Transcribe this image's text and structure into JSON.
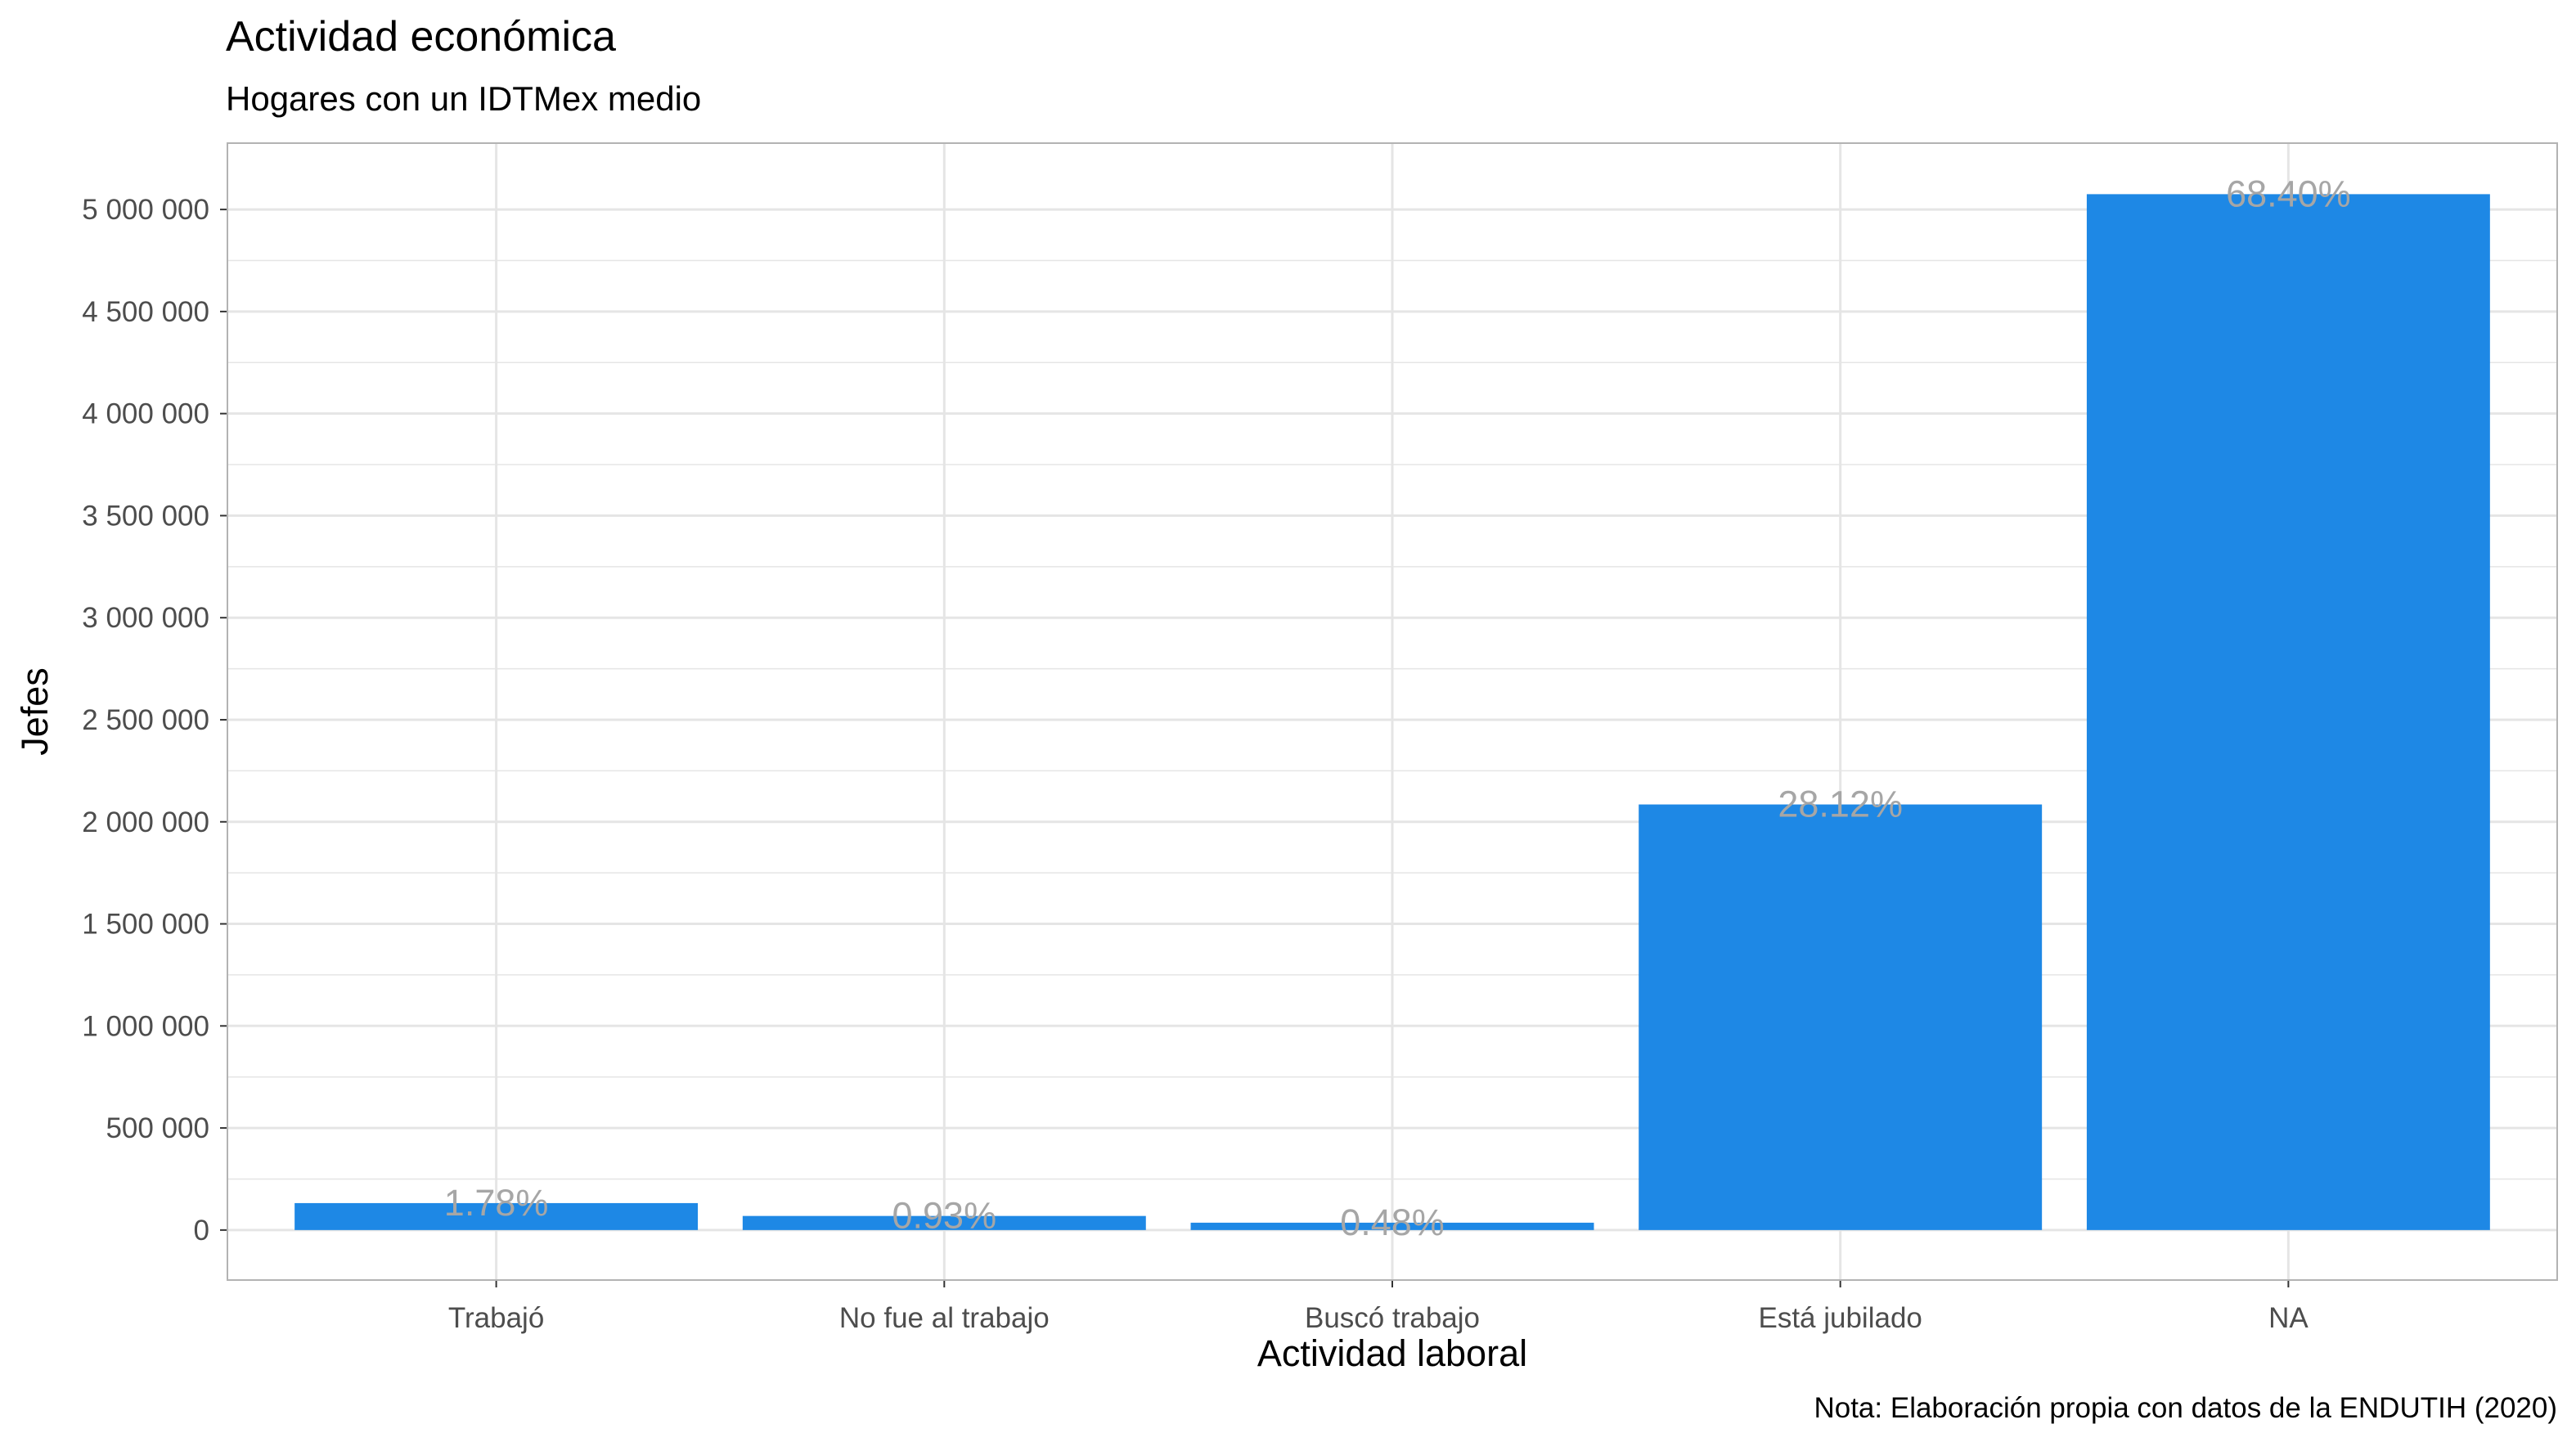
{
  "chart_data": {
    "type": "bar",
    "title": "Actividad económica",
    "subtitle": "Hogares con un IDTMex medio",
    "xlabel": "Actividad laboral",
    "ylabel": "Jefes",
    "caption": "Nota: Elaboración propia con datos de la ENDUTIH (2020)",
    "categories": [
      "Trabajó",
      "No fue al trabajo",
      "Buscó trabajo",
      "Está jubilado",
      "NA"
    ],
    "values": [
      132000,
      69000,
      36000,
      2085000,
      5075000
    ],
    "labels": [
      "1.78%",
      "0.93%",
      "0.48%",
      "28.12%",
      "68.40%"
    ],
    "ylim": [
      -245000,
      5325000
    ],
    "yticks": [
      0,
      500000,
      1000000,
      1500000,
      2000000,
      2500000,
      3000000,
      3500000,
      4000000,
      4500000,
      5000000
    ],
    "ytick_labels": [
      "0",
      "500 000",
      "1 000 000",
      "1 500 000",
      "2 000 000",
      "2 500 000",
      "3 000 000",
      "3 500 000",
      "4 000 000",
      "4 500 000",
      "5 000 000"
    ],
    "grid": true,
    "colors": {
      "bar": "#1e88e5",
      "label": "#a6a6a6",
      "grid": "#e5e5e5",
      "panel_border": "#b3b3b3",
      "tick_text": "#4d4d4d"
    }
  }
}
